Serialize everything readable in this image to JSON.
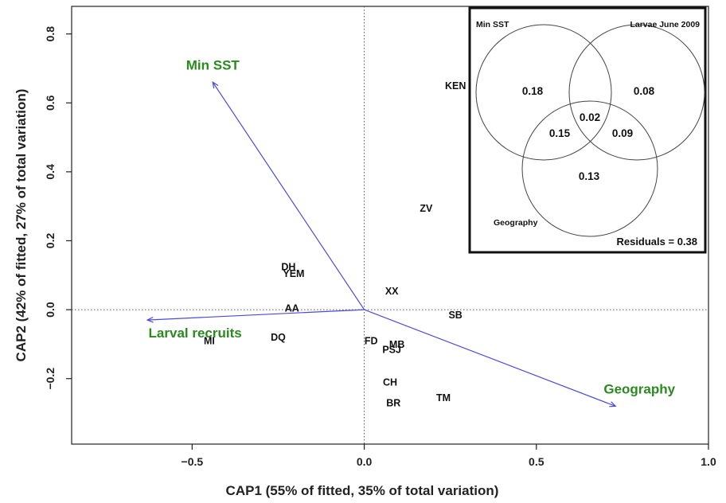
{
  "chart_data": {
    "type": "scatter",
    "xlabel": "CAP1 (55% of fitted, 35% of total variation)",
    "ylabel": "CAP2 (42% of fitted, 27% of total variation)",
    "xlim": [
      -0.85,
      1.0
    ],
    "ylim": [
      -0.39,
      0.88
    ],
    "x_ticks": [
      {
        "value": -0.5,
        "label": "−0.5"
      },
      {
        "value": 0.0,
        "label": "0.0"
      },
      {
        "value": 0.5,
        "label": "0.5"
      },
      {
        "value": 1.0,
        "label": "1.0"
      }
    ],
    "y_ticks": [
      {
        "value": -0.2,
        "label": "−0.2"
      },
      {
        "value": 0.0,
        "label": "0.0"
      },
      {
        "value": 0.2,
        "label": "0.2"
      },
      {
        "value": 0.4,
        "label": "0.4"
      },
      {
        "value": 0.6,
        "label": "0.6"
      },
      {
        "value": 0.8,
        "label": "0.8"
      }
    ],
    "reference_lines": {
      "x": 0,
      "y": 0,
      "style": "dotted"
    },
    "points": [
      {
        "label": "KEN",
        "x": 0.265,
        "y": 0.65
      },
      {
        "label": "ZV",
        "x": 0.18,
        "y": 0.295
      },
      {
        "label": "DH",
        "x": -0.22,
        "y": 0.125
      },
      {
        "label": "YEM",
        "x": -0.205,
        "y": 0.105
      },
      {
        "label": "XX",
        "x": 0.08,
        "y": 0.055
      },
      {
        "label": "AA",
        "x": -0.21,
        "y": 0.005
      },
      {
        "label": "SB",
        "x": 0.265,
        "y": -0.015
      },
      {
        "label": "MI",
        "x": -0.45,
        "y": -0.09
      },
      {
        "label": "DQ",
        "x": -0.25,
        "y": -0.08
      },
      {
        "label": "FD",
        "x": 0.02,
        "y": -0.09
      },
      {
        "label": "MB",
        "x": 0.095,
        "y": -0.1
      },
      {
        "label": "PSJ",
        "x": 0.08,
        "y": -0.115
      },
      {
        "label": "CH",
        "x": 0.075,
        "y": -0.21
      },
      {
        "label": "TM",
        "x": 0.23,
        "y": -0.255
      },
      {
        "label": "BR",
        "x": 0.085,
        "y": -0.27
      }
    ],
    "vectors": [
      {
        "name": "Min SST",
        "x": -0.44,
        "y": 0.66
      },
      {
        "name": "Larval recruits",
        "x": -0.63,
        "y": -0.03
      },
      {
        "name": "Geography",
        "x": 0.73,
        "y": -0.28
      }
    ],
    "grid": false,
    "legend": "none",
    "colors": {
      "vector": "#4a4ae0",
      "vector_label": "#2a8a1e",
      "text": "#111111"
    }
  },
  "inset": {
    "type": "venn",
    "sets": [
      "Min SST",
      "Larvae June 2009",
      "Geography"
    ],
    "regions": {
      "min_sst_only": "0.18",
      "larvae_only": "0.08",
      "geography_only": "0.13",
      "all_three": "0.02",
      "min_sst_geography": "0.15",
      "larvae_geography": "0.09"
    },
    "residuals_text": "Residuals = 0.38"
  }
}
